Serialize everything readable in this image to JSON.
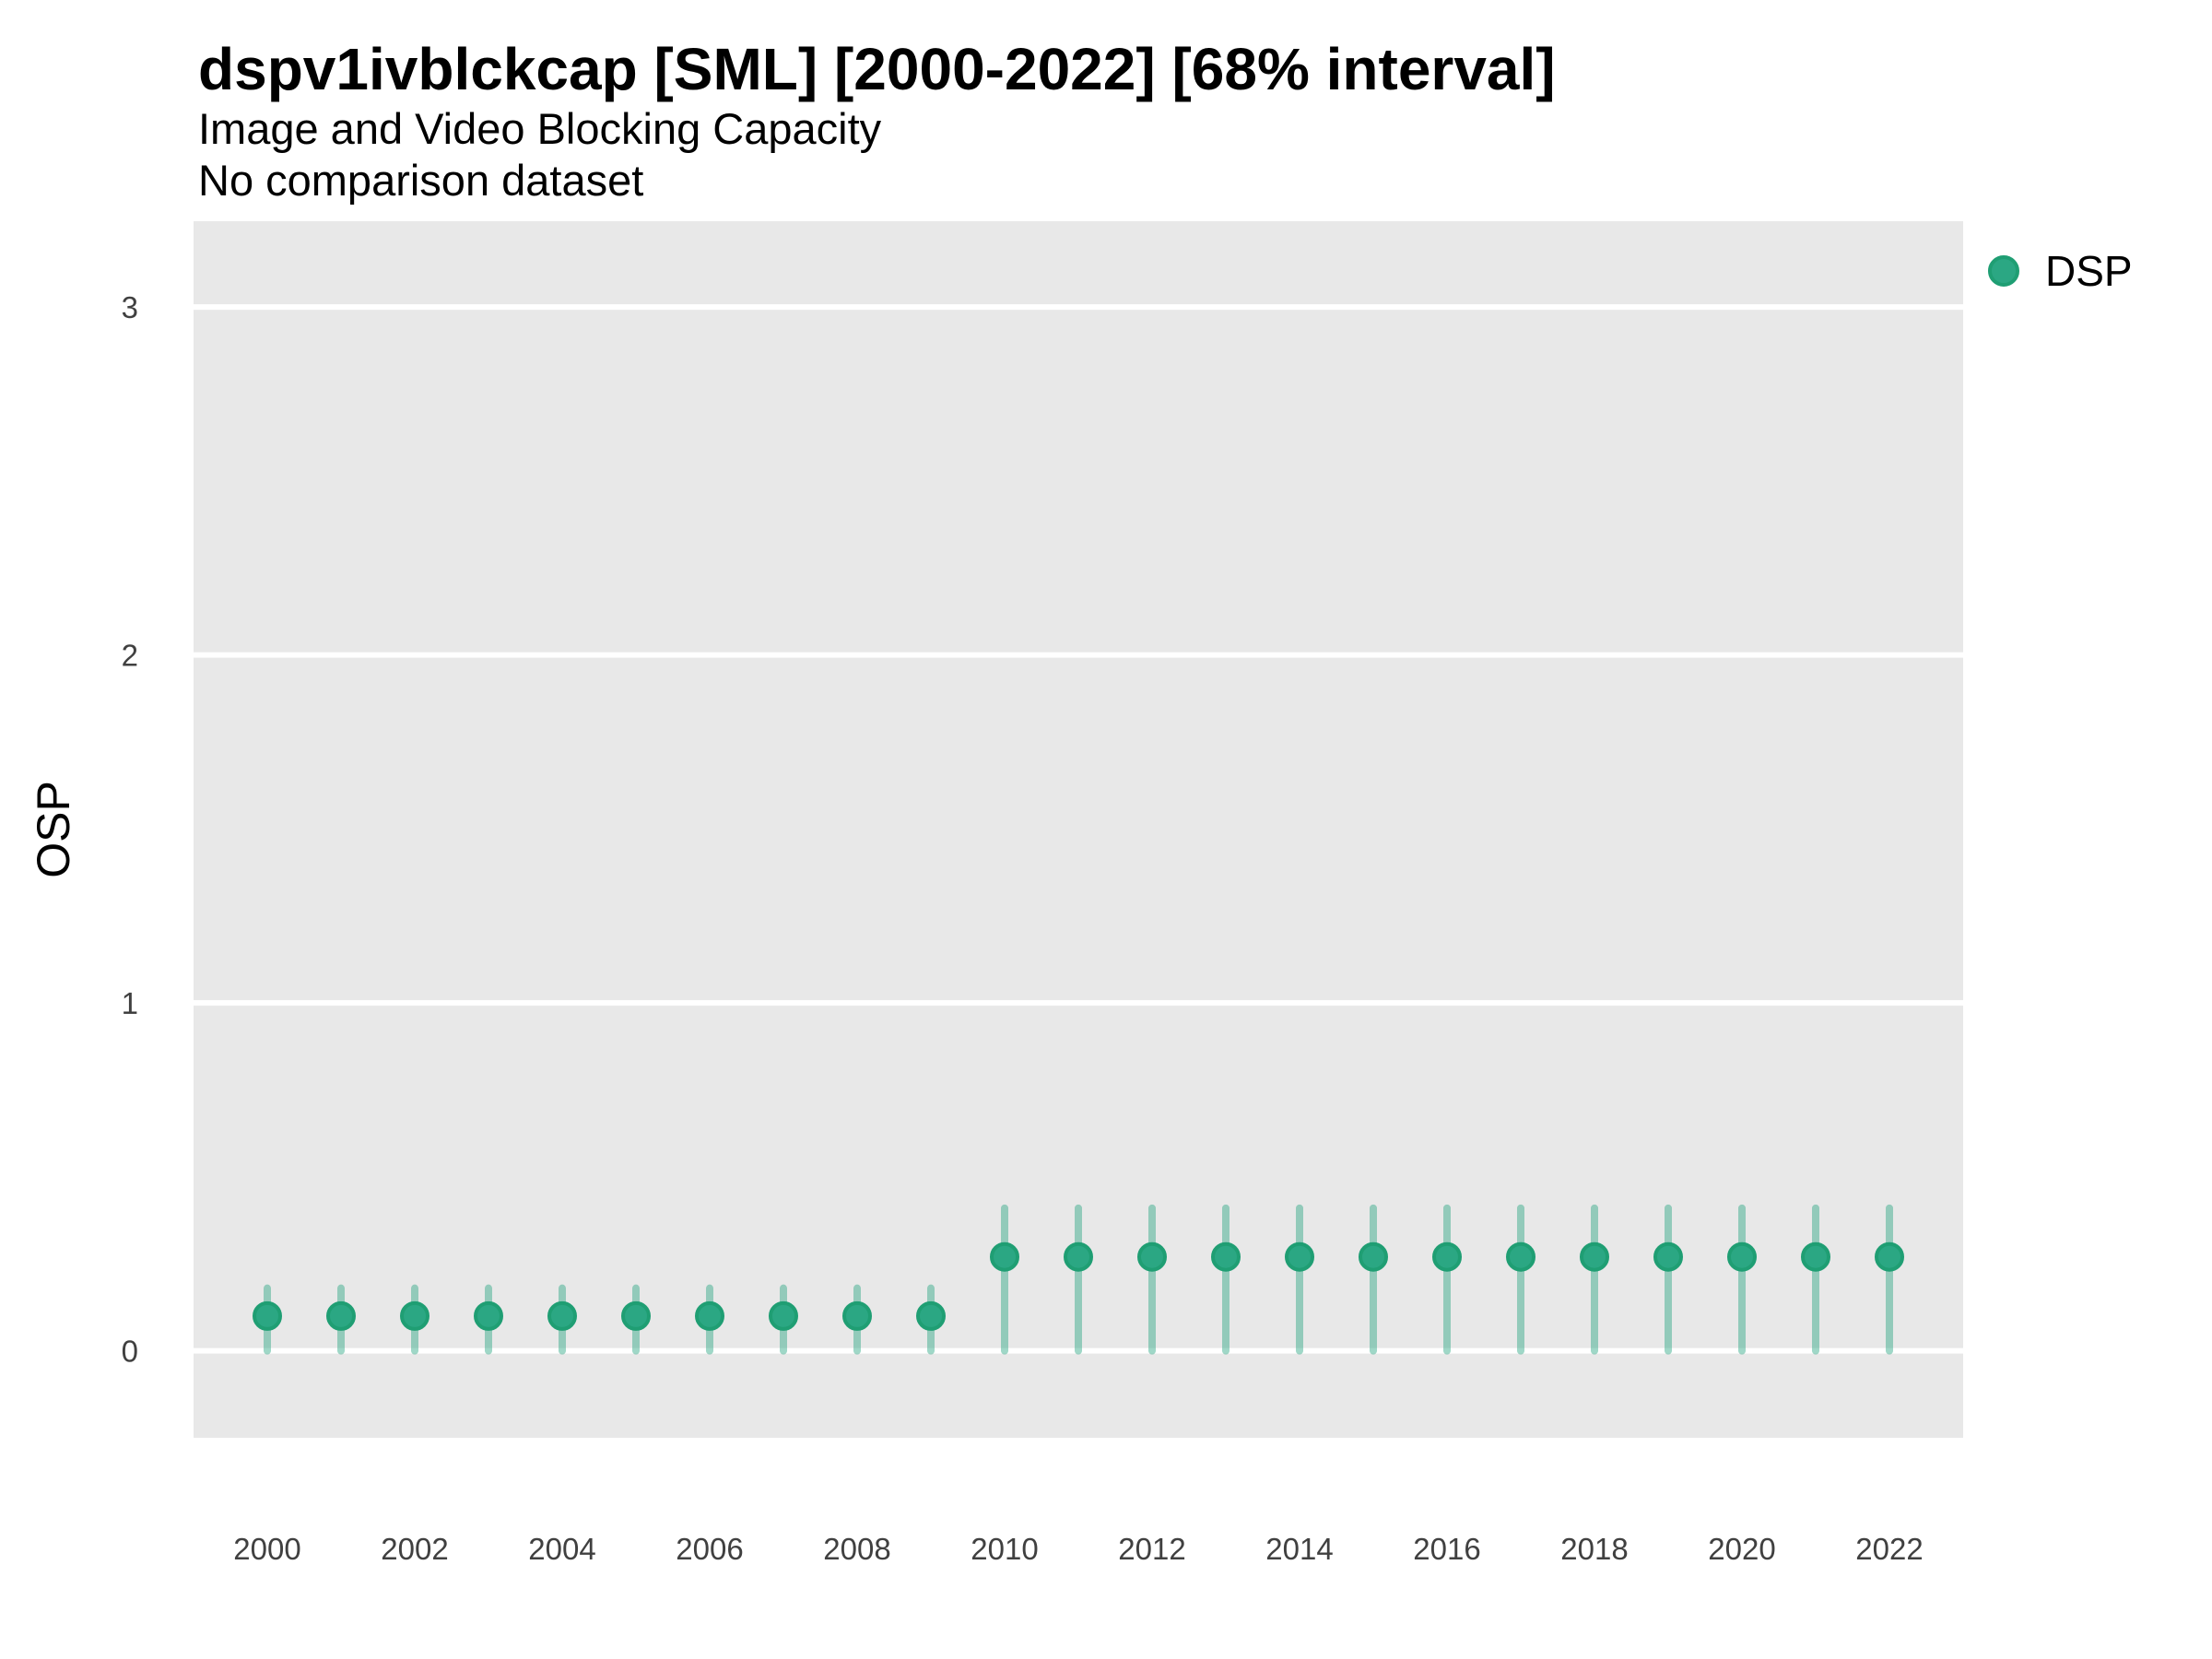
{
  "header": {
    "title": "dspv1ivblckcap [SML] [2000-2022] [68% interval]",
    "subtitle": "Image and Video Blocking Capacity",
    "comparison_note": "No comparison dataset"
  },
  "axes": {
    "y_title": "OSP"
  },
  "legend": {
    "label": "DSP"
  },
  "chart_data": {
    "type": "scatter",
    "title": "dspv1ivblckcap [SML] [2000-2022] [68% interval]",
    "subtitle": "Image and Video Blocking Capacity",
    "note": "No comparison dataset",
    "interval": "68%",
    "ylabel": "OSP",
    "xlabel": "",
    "x": [
      2000,
      2001,
      2002,
      2003,
      2004,
      2005,
      2006,
      2007,
      2008,
      2009,
      2010,
      2011,
      2012,
      2013,
      2014,
      2015,
      2016,
      2017,
      2018,
      2019,
      2020,
      2021,
      2022
    ],
    "series": [
      {
        "name": "DSP",
        "mid": [
          0.1,
          0.1,
          0.1,
          0.1,
          0.1,
          0.1,
          0.1,
          0.1,
          0.1,
          0.1,
          0.27,
          0.27,
          0.27,
          0.27,
          0.27,
          0.27,
          0.27,
          0.27,
          0.27,
          0.27,
          0.27,
          0.27,
          0.27
        ],
        "lo": [
          0,
          0,
          0,
          0,
          0,
          0,
          0,
          0,
          0,
          0,
          0,
          0,
          0,
          0,
          0,
          0,
          0,
          0,
          0,
          0,
          0,
          0,
          0
        ],
        "hi": [
          0.18,
          0.18,
          0.18,
          0.18,
          0.18,
          0.18,
          0.18,
          0.18,
          0.18,
          0.18,
          0.41,
          0.41,
          0.41,
          0.41,
          0.41,
          0.41,
          0.41,
          0.41,
          0.41,
          0.41,
          0.41,
          0.41,
          0.41
        ]
      }
    ],
    "x_tick_labels": [
      2000,
      2002,
      2004,
      2006,
      2008,
      2010,
      2012,
      2014,
      2016,
      2018,
      2020,
      2022
    ],
    "y_tick_labels": [
      0,
      1,
      2,
      3
    ],
    "xlim": [
      1999,
      2023
    ],
    "ylim": [
      -0.25,
      3.2467
    ],
    "grid": "horizontal white major gridlines only",
    "legend_position": "top-right",
    "panel_background": "gray"
  },
  "colors": {
    "point_fill": "#2BA783",
    "point_stroke": "#1F9E73",
    "error_bar": "rgba(43,167,131,0.45)",
    "panel_bg": "#E8E8E8",
    "gridline": "#FFFFFF",
    "axis_text": "#404040",
    "title_text": "#000000"
  }
}
